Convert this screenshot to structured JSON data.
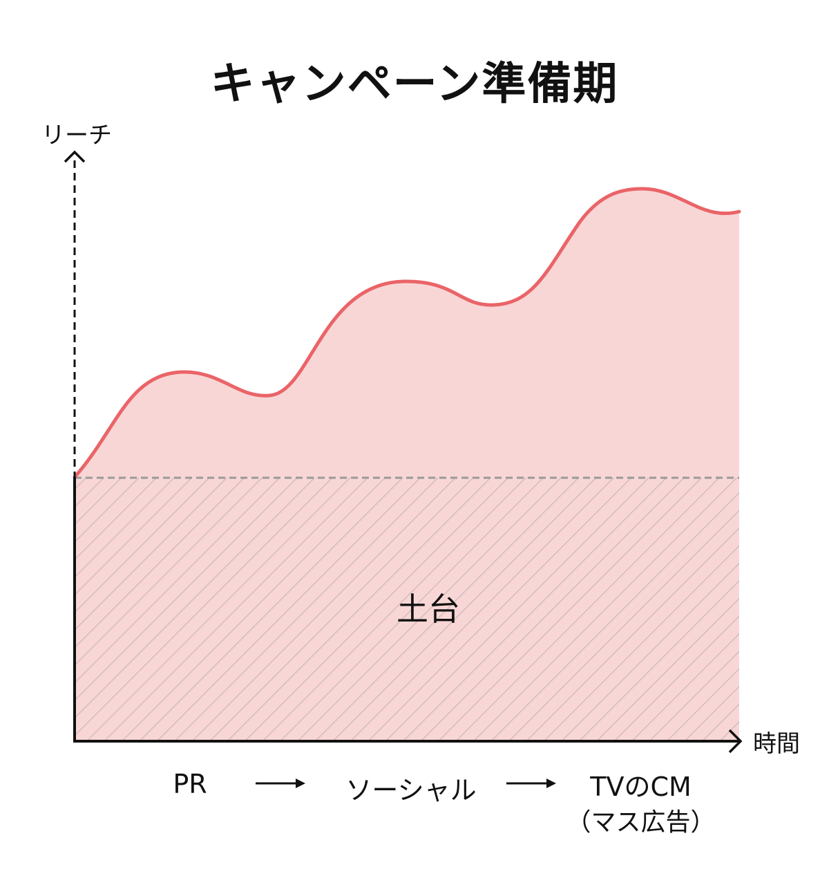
{
  "title": "キャンペーン準備期",
  "axes": {
    "y_label": "リーチ",
    "x_label": "時間"
  },
  "base": {
    "label": "土台"
  },
  "phases": [
    {
      "label": "PR"
    },
    {
      "label": "ソーシャル"
    },
    {
      "label": "TVのCM",
      "sublabel": "（マス広告）"
    }
  ],
  "colors": {
    "curve": "#ea6468",
    "fill": "#f9d6d6",
    "hatch": "#c4b4b4",
    "baseline": "#999999",
    "axis": "#111111"
  }
}
